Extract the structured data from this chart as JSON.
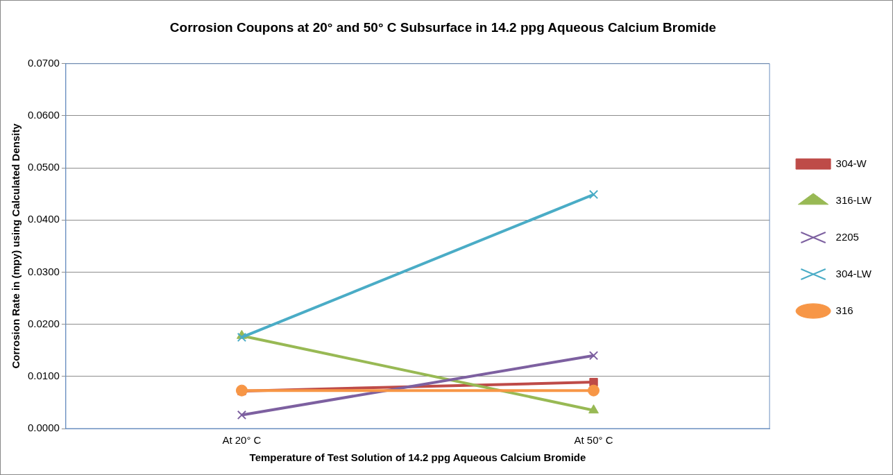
{
  "chart_data": {
    "type": "line",
    "title": "Corrosion Coupons at 20° and 50° C Subsurface in 14.2 ppg Aqueous Calcium Bromide",
    "xlabel": "Temperature of Test Solution of 14.2 ppg Aqueous Calcium Bromide",
    "ylabel": "Corrosion Rate in (mpy) using Calculated Density",
    "categories": [
      "At 20° C",
      "At 50° C"
    ],
    "series": [
      {
        "name": "304-W",
        "color": "#be4b48",
        "marker": "square",
        "values": [
          0.0072,
          0.0089
        ]
      },
      {
        "name": "316-LW",
        "color": "#98b954",
        "marker": "triangle",
        "values": [
          0.0178,
          0.0035
        ]
      },
      {
        "name": "2205",
        "color": "#7d60a0",
        "marker": "cross",
        "values": [
          0.0026,
          0.014
        ]
      },
      {
        "name": "304-LW",
        "color": "#4aacc6",
        "marker": "cross",
        "values": [
          0.0175,
          0.0449
        ]
      },
      {
        "name": "316",
        "color": "#f79646",
        "marker": "circle",
        "values": [
          0.0073,
          0.0073
        ]
      }
    ],
    "ylim": [
      0,
      0.07
    ],
    "yticks": [
      {
        "value": 0,
        "label": "0.0000"
      },
      {
        "value": 0.01,
        "label": "0.0100"
      },
      {
        "value": 0.02,
        "label": "0.0200"
      },
      {
        "value": 0.03,
        "label": "0.0300"
      },
      {
        "value": 0.04,
        "label": "0.0400"
      },
      {
        "value": 0.05,
        "label": "0.0500"
      },
      {
        "value": 0.06,
        "label": "0.0600"
      },
      {
        "value": 0.07,
        "label": "0.0700"
      }
    ],
    "grid": "y",
    "legend": "right"
  }
}
